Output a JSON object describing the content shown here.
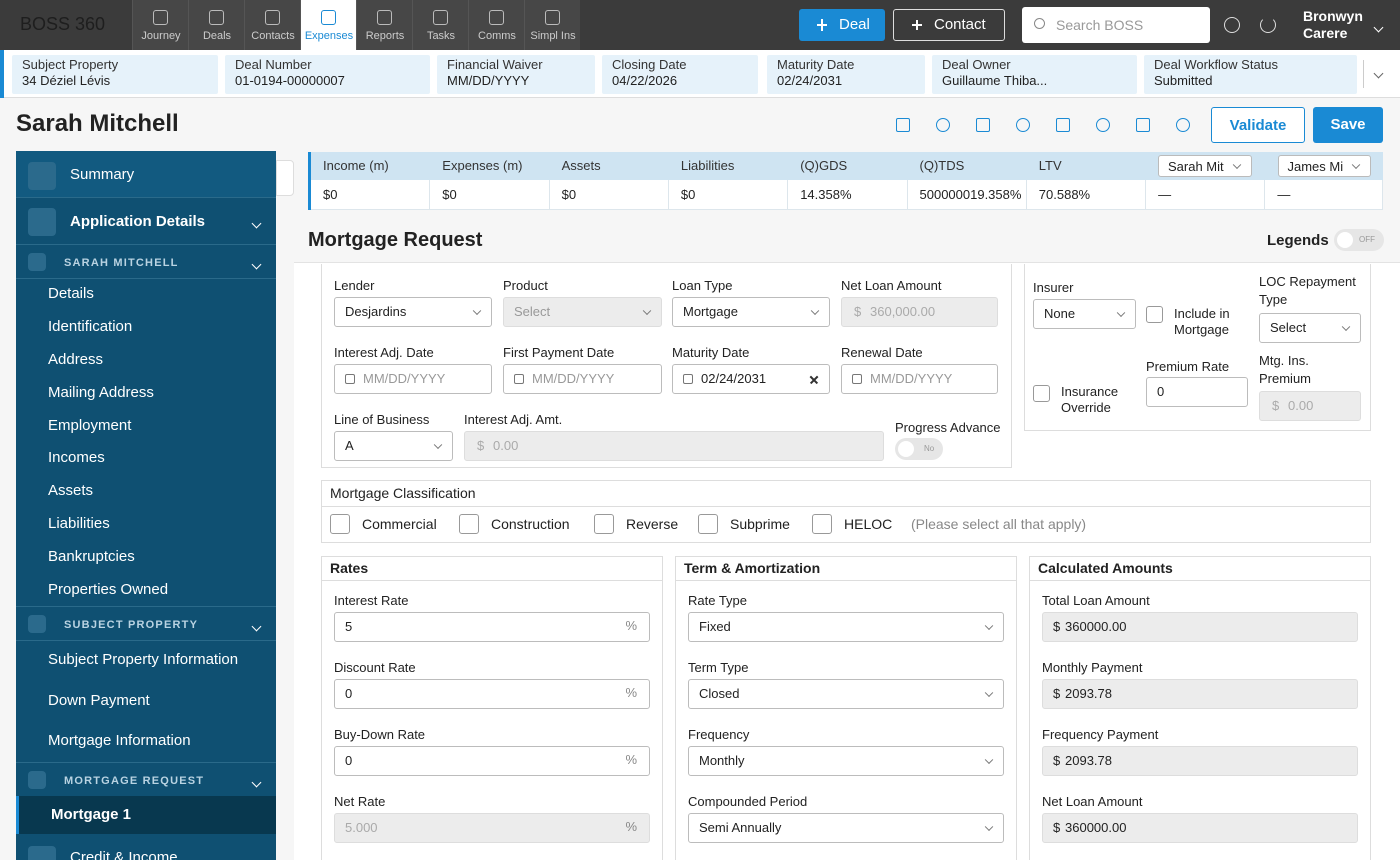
{
  "topbar": {
    "logo": "BOSS 360",
    "nav": [
      "Journey",
      "Deals",
      "Contacts",
      "Expenses",
      "Reports",
      "Tasks",
      "Comms",
      "Simpl Ins"
    ],
    "new_deal": "Deal",
    "new_contact": "Contact",
    "search_placeholder": "Search BOSS",
    "user": [
      "Bronwyn",
      "Carere"
    ]
  },
  "deal_bar": [
    {
      "label": "Subject Property",
      "value": "34 Déziel Lévis"
    },
    {
      "label": "Deal Number",
      "value": "01-0194-00000007"
    },
    {
      "label": "Financial Waiver",
      "value": "MM/DD/YYYY"
    },
    {
      "label": "Closing Date",
      "value": "04/22/2026"
    },
    {
      "label": "Maturity Date",
      "value": "02/24/2031"
    },
    {
      "label": "Deal Owner",
      "value": "Guillaume Thiba..."
    },
    {
      "label": "Deal Workflow Status",
      "value": "Submitted"
    }
  ],
  "header": {
    "title": "Sarah Mitchell",
    "validate": "Validate",
    "save": "Save"
  },
  "sidebar": {
    "summary": "Summary",
    "application_details": "Application Details",
    "sections": [
      {
        "title": "SARAH MITCHELL",
        "items": [
          "Details",
          "Identification",
          "Address",
          "Mailing Address",
          "Employment",
          "Incomes",
          "Assets",
          "Liabilities",
          "Bankruptcies",
          "Properties Owned"
        ]
      },
      {
        "title": "SUBJECT PROPERTY",
        "items": [
          "Subject Property Information",
          "Down Payment",
          "Mortgage Information"
        ]
      },
      {
        "title": "MORTGAGE REQUEST",
        "items": [
          "Mortgage 1"
        ]
      }
    ],
    "credit_income": "Credit & Income"
  },
  "summary_table": {
    "headers": [
      "Income (m)",
      "Expenses (m)",
      "Assets",
      "Liabilities",
      "(Q)GDS",
      "(Q)TDS",
      "LTV"
    ],
    "applicants": [
      "Sarah Mit",
      "James Mi"
    ],
    "values": [
      "$0",
      "$0",
      "$0",
      "$0",
      "14.358%",
      "500000019.358%",
      "70.588%",
      "—",
      "—"
    ]
  },
  "mortgage_request": {
    "title": "Mortgage Request",
    "legends": "Legends",
    "legends_toggle": "OFF"
  },
  "symbols": {
    "currency": "$",
    "percent": "%"
  },
  "loan": [
    {
      "label": "Lender",
      "value": "Desjardins"
    },
    {
      "label": "Product",
      "value": "Select"
    },
    {
      "label": "Loan Type",
      "value": "Mortgage"
    },
    {
      "label": "Net Loan Amount",
      "value": "360,000.00"
    },
    {
      "label": "Interest Adj. Date",
      "value": "MM/DD/YYYY"
    },
    {
      "label": "First Payment Date",
      "value": "MM/DD/YYYY"
    },
    {
      "label": "Maturity Date",
      "value": "02/24/2031"
    },
    {
      "label": "Renewal Date",
      "value": "MM/DD/YYYY"
    },
    {
      "label": "Line of Business",
      "value": "A"
    },
    {
      "label": "Interest Adj. Amt.",
      "value": "0.00"
    },
    {
      "label": "Progress Advance",
      "value": "No"
    }
  ],
  "insurance": [
    {
      "label": "Insurer",
      "value": "None"
    },
    {
      "label": "Include in Mortgage"
    },
    {
      "label": "LOC Repayment Type",
      "value": "Select"
    },
    {
      "label": "Insurance Override"
    },
    {
      "label": "Premium Rate",
      "value": "0"
    },
    {
      "label": "Mtg. Ins. Premium",
      "value": "0.00"
    }
  ],
  "classification": {
    "title": "Mortgage Classification",
    "options": [
      "Commercial",
      "Construction",
      "Reverse",
      "Subprime",
      "HELOC"
    ],
    "hint": "(Please select all that apply)"
  },
  "rates": {
    "title": "Rates",
    "fields": [
      {
        "label": "Interest Rate",
        "value": "5"
      },
      {
        "label": "Discount Rate",
        "value": "0"
      },
      {
        "label": "Buy-Down Rate",
        "value": "0"
      },
      {
        "label": "Net Rate",
        "value": "5.000"
      }
    ]
  },
  "term": {
    "title": "Term & Amortization",
    "fields": [
      {
        "label": "Rate Type",
        "value": "Fixed"
      },
      {
        "label": "Term Type",
        "value": "Closed"
      },
      {
        "label": "Frequency",
        "value": "Monthly"
      },
      {
        "label": "Compounded Period",
        "value": "Semi Annually"
      }
    ]
  },
  "calculated": {
    "title": "Calculated Amounts",
    "fields": [
      {
        "label": "Total Loan Amount",
        "value": "360000.00"
      },
      {
        "label": "Monthly Payment",
        "value": "2093.78"
      },
      {
        "label": "Frequency Payment",
        "value": "2093.78"
      },
      {
        "label": "Net Loan Amount",
        "value": "360000.00"
      }
    ]
  }
}
